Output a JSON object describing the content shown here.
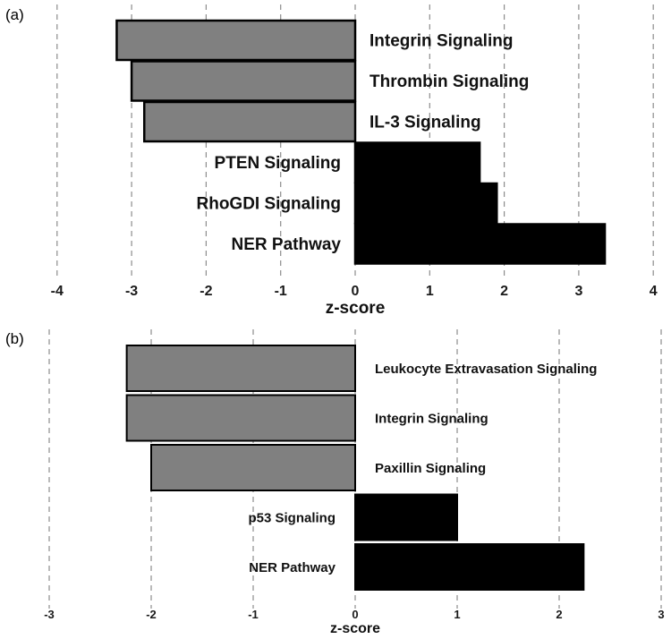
{
  "chart_data": [
    {
      "panel_label": "(a)",
      "type": "bar",
      "orientation": "horizontal",
      "xlabel": "z-score",
      "ylabel": "",
      "xlim": [
        -4,
        4
      ],
      "xticks": [
        "-4",
        "-3",
        "-2",
        "-1",
        "0",
        "1",
        "2",
        "3",
        "4"
      ],
      "grid": true,
      "categories": [
        "Integrin Signaling",
        "Thrombin Signaling",
        "IL-3 Signaling",
        "PTEN Signaling",
        "RhoGDI Signaling",
        "NER Pathway"
      ],
      "values": [
        -3.2,
        -3.0,
        -2.83,
        1.67,
        1.9,
        3.35
      ],
      "colors": {
        "negative": "#808080",
        "positive": "#000000"
      }
    },
    {
      "panel_label": "(b)",
      "type": "bar",
      "orientation": "horizontal",
      "xlabel": "z-score",
      "ylabel": "",
      "xlim": [
        -3,
        3
      ],
      "xticks": [
        "-3",
        "-2",
        "-1",
        "0",
        "1",
        "2",
        "3"
      ],
      "grid": true,
      "categories": [
        "Leukocyte Extravasation Signaling",
        "Integrin Signaling",
        "Paxillin Signaling",
        "p53 Signaling",
        "NER Pathway"
      ],
      "values": [
        -2.24,
        -2.24,
        -2.0,
        1.0,
        2.24
      ],
      "colors": {
        "negative": "#808080",
        "positive": "#000000"
      }
    }
  ]
}
